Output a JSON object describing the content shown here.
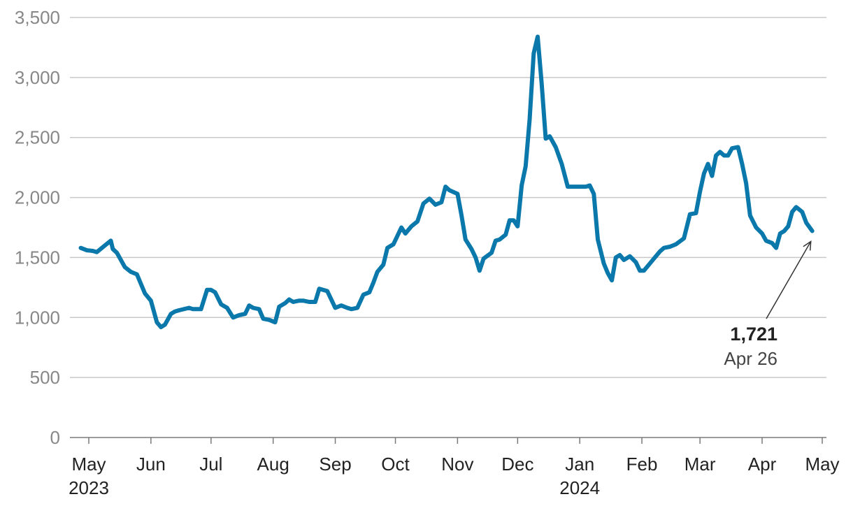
{
  "chart_data": {
    "type": "line",
    "title": "",
    "xlabel": "",
    "ylabel": "",
    "ylim": [
      0,
      3500
    ],
    "y_ticks": [
      0,
      500,
      1000,
      1500,
      2000,
      2500,
      3000,
      3500
    ],
    "y_tick_labels": [
      "0",
      "500",
      "1,000",
      "1,500",
      "2,000",
      "2,500",
      "3,000",
      "3,500"
    ],
    "grid": true,
    "x_ticks": [
      {
        "label": "May",
        "year": "2023"
      },
      {
        "label": "Jun",
        "year": ""
      },
      {
        "label": "Jul",
        "year": ""
      },
      {
        "label": "Aug",
        "year": ""
      },
      {
        "label": "Sep",
        "year": ""
      },
      {
        "label": "Oct",
        "year": ""
      },
      {
        "label": "Nov",
        "year": ""
      },
      {
        "label": "Dec",
        "year": ""
      },
      {
        "label": "Jan",
        "year": "2024"
      },
      {
        "label": "Feb",
        "year": ""
      },
      {
        "label": "Mar",
        "year": ""
      },
      {
        "label": "Apr",
        "year": ""
      },
      {
        "label": "May",
        "year": ""
      }
    ],
    "series": [
      {
        "color": "#0a78aa",
        "x": [
          "2023-04-27",
          "2023-04-30",
          "2023-05-03",
          "2023-05-05",
          "2023-05-09",
          "2023-05-12",
          "2023-05-13",
          "2023-05-15",
          "2023-05-19",
          "2023-05-22",
          "2023-05-25",
          "2023-05-29",
          "2023-06-01",
          "2023-06-04",
          "2023-06-06",
          "2023-06-08",
          "2023-06-11",
          "2023-06-13",
          "2023-06-15",
          "2023-06-20",
          "2023-06-22",
          "2023-06-26",
          "2023-06-29",
          "2023-07-01",
          "2023-07-03",
          "2023-07-06",
          "2023-07-09",
          "2023-07-12",
          "2023-07-15",
          "2023-07-18",
          "2023-07-20",
          "2023-07-22",
          "2023-07-25",
          "2023-07-27",
          "2023-07-30",
          "2023-08-02",
          "2023-08-04",
          "2023-08-07",
          "2023-08-09",
          "2023-08-11",
          "2023-08-14",
          "2023-08-16",
          "2023-08-19",
          "2023-08-22",
          "2023-08-24",
          "2023-08-28",
          "2023-09-01",
          "2023-09-04",
          "2023-09-07",
          "2023-09-09",
          "2023-09-12",
          "2023-09-15",
          "2023-09-18",
          "2023-09-20",
          "2023-09-22",
          "2023-09-25",
          "2023-09-27",
          "2023-09-30",
          "2023-10-04",
          "2023-10-06",
          "2023-10-09",
          "2023-10-12",
          "2023-10-15",
          "2023-10-18",
          "2023-10-21",
          "2023-10-24",
          "2023-10-26",
          "2023-10-28",
          "2023-11-01",
          "2023-11-03",
          "2023-11-05",
          "2023-11-08",
          "2023-11-10",
          "2023-11-12",
          "2023-11-14",
          "2023-11-18",
          "2023-11-20",
          "2023-11-22",
          "2023-11-25",
          "2023-11-27",
          "2023-11-29",
          "2023-12-01",
          "2023-12-03",
          "2023-12-05",
          "2023-12-07",
          "2023-12-09",
          "2023-12-11",
          "2023-12-13",
          "2023-12-15",
          "2023-12-17",
          "2023-12-20",
          "2023-12-23",
          "2023-12-26",
          "2023-12-29",
          "2024-01-01",
          "2024-01-04",
          "2024-01-06",
          "2024-01-08",
          "2024-01-10",
          "2024-01-13",
          "2024-01-15",
          "2024-01-17",
          "2024-01-19",
          "2024-01-21",
          "2024-01-23",
          "2024-01-26",
          "2024-01-29",
          "2024-01-31",
          "2024-02-02",
          "2024-02-05",
          "2024-02-07",
          "2024-02-10",
          "2024-02-12",
          "2024-02-15",
          "2024-02-18",
          "2024-02-22",
          "2024-02-25",
          "2024-02-28",
          "2024-03-01",
          "2024-03-03",
          "2024-03-05",
          "2024-03-07",
          "2024-03-09",
          "2024-03-11",
          "2024-03-13",
          "2024-03-15",
          "2024-03-17",
          "2024-03-20",
          "2024-03-22",
          "2024-03-24",
          "2024-03-26",
          "2024-03-29",
          "2024-04-01",
          "2024-04-03",
          "2024-04-06",
          "2024-04-08",
          "2024-04-10",
          "2024-04-12",
          "2024-04-14",
          "2024-04-16",
          "2024-04-18",
          "2024-04-21",
          "2024-04-23",
          "2024-04-26"
        ],
        "y": [
          1580,
          1560,
          1555,
          1545,
          1600,
          1640,
          1570,
          1540,
          1420,
          1380,
          1360,
          1200,
          1140,
          960,
          920,
          940,
          1030,
          1050,
          1060,
          1080,
          1070,
          1070,
          1230,
          1230,
          1210,
          1110,
          1080,
          1000,
          1020,
          1030,
          1100,
          1080,
          1070,
          990,
          980,
          960,
          1090,
          1120,
          1150,
          1130,
          1140,
          1140,
          1130,
          1130,
          1240,
          1220,
          1080,
          1100,
          1080,
          1070,
          1080,
          1190,
          1210,
          1290,
          1380,
          1440,
          1580,
          1610,
          1750,
          1700,
          1760,
          1800,
          1950,
          1990,
          1940,
          1960,
          2090,
          2060,
          2030,
          1850,
          1650,
          1570,
          1500,
          1390,
          1490,
          1540,
          1640,
          1650,
          1690,
          1810,
          1810,
          1760,
          2100,
          2260,
          2650,
          3200,
          3340,
          2950,
          2490,
          2510,
          2420,
          2280,
          2090,
          2090,
          2090,
          2090,
          2100,
          2030,
          1650,
          1450,
          1370,
          1310,
          1500,
          1520,
          1480,
          1510,
          1460,
          1390,
          1390,
          1450,
          1490,
          1550,
          1580,
          1590,
          1610,
          1660,
          1860,
          1870,
          2050,
          2200,
          2280,
          2180,
          2350,
          2380,
          2350,
          2350,
          2410,
          2420,
          2280,
          2120,
          1850,
          1750,
          1700,
          1640,
          1620,
          1580,
          1700,
          1720,
          1760,
          1880,
          1920,
          1880,
          1790,
          1721
        ]
      }
    ],
    "annotation": {
      "value": "1,721",
      "date": "Apr 26",
      "x": "2024-04-26",
      "y": 1721
    }
  }
}
